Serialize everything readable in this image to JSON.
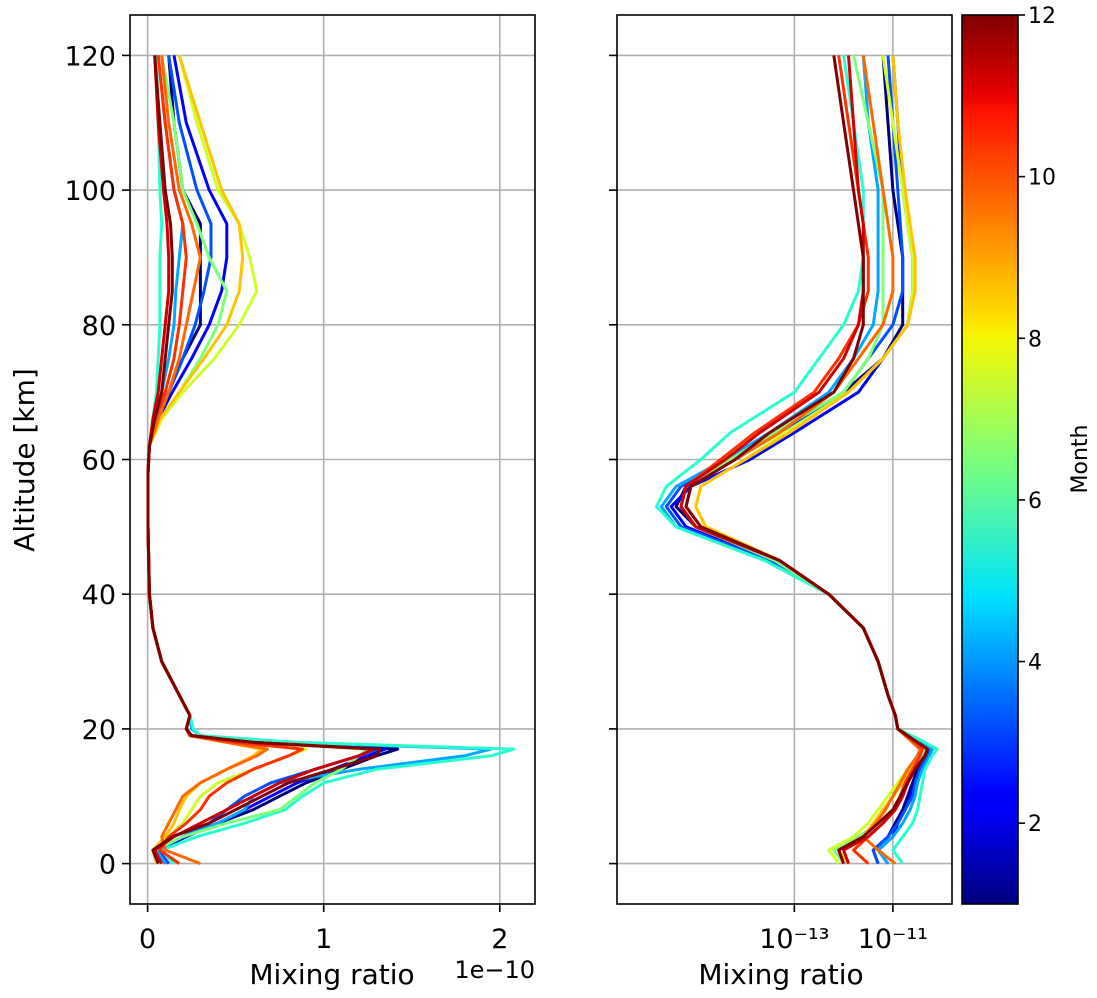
{
  "chart_data": [
    {
      "type": "line",
      "panel": "left",
      "title": "",
      "xlabel": "Mixing ratio",
      "ylabel": "Altitude [km]",
      "x_offset_text": "1e−10",
      "x_scale": "linear",
      "xlim": [
        -1e-11,
        2.2e-10
      ],
      "ylim": [
        -6,
        126
      ],
      "xticks": [
        0,
        1e-10,
        2e-10
      ],
      "xtick_labels": [
        "0",
        "1",
        "2"
      ],
      "yticks": [
        0,
        20,
        40,
        60,
        80,
        100,
        120
      ],
      "ytick_labels": [
        "0",
        "20",
        "40",
        "60",
        "80",
        "100",
        "120"
      ],
      "grid": true,
      "altitudes": [
        0,
        2,
        4,
        6,
        8,
        10,
        12,
        14,
        16,
        17,
        18,
        19,
        20,
        22,
        25,
        30,
        35,
        40,
        50,
        58,
        62,
        66,
        70,
        75,
        80,
        85,
        90,
        95,
        100,
        110,
        120
      ],
      "series": [
        {
          "month": 1,
          "color": "#00007f",
          "x": [
            1e-11,
            5e-12,
            2e-11,
            4e-11,
            6e-11,
            7.5e-11,
            9e-11,
            1.1e-10,
            1.3e-10,
            1.42e-10,
            7e-11,
            2.5e-11,
            2.2e-11,
            2.4e-11,
            1.8e-11,
            8e-12,
            3e-12,
            1e-12,
            2e-13,
            2e-13,
            1e-12,
            5e-12,
            1.2e-11,
            2e-11,
            3e-11,
            3e-11,
            3e-11,
            3e-11,
            2e-11,
            1.5e-11,
            1.2e-11
          ]
        },
        {
          "month": 2,
          "color": "#0000ff",
          "x": [
            1.2e-11,
            6e-12,
            2.2e-11,
            4e-11,
            5.5e-11,
            7e-11,
            8.5e-11,
            1.05e-10,
            1.25e-10,
            1.35e-10,
            7e-11,
            2.5e-11,
            2.2e-11,
            2.4e-11,
            1.8e-11,
            8e-12,
            3e-12,
            1e-12,
            2e-13,
            2e-13,
            1e-12,
            6e-12,
            1.4e-11,
            2.5e-11,
            3.5e-11,
            4.2e-11,
            4.5e-11,
            4.5e-11,
            3.5e-11,
            2.2e-11,
            1.5e-11
          ]
        },
        {
          "month": 3,
          "color": "#0050ff",
          "x": [
            1.2e-11,
            6e-12,
            2e-11,
            3.5e-11,
            4.5e-11,
            5.5e-11,
            7e-11,
            9.5e-11,
            1.2e-10,
            1.3e-10,
            6.5e-11,
            2.4e-11,
            2.2e-11,
            2.4e-11,
            1.8e-11,
            8e-12,
            3e-12,
            1e-12,
            2e-13,
            2e-13,
            1e-12,
            5e-12,
            1.2e-11,
            2e-11,
            2.7e-11,
            3.2e-11,
            3.6e-11,
            3.6e-11,
            2.8e-11,
            1.8e-11,
            1.2e-11
          ]
        },
        {
          "month": 4,
          "color": "#00a8ff",
          "x": [
            1e-11,
            5e-12,
            2e-11,
            4e-11,
            5.5e-11,
            6e-11,
            7.5e-11,
            1.2e-10,
            1.8e-10,
            1.95e-10,
            8e-11,
            3e-11,
            2.5e-11,
            2.4e-11,
            1.8e-11,
            8e-12,
            3e-12,
            1e-12,
            2e-13,
            2e-13,
            1e-12,
            4e-12,
            8e-12,
            1.2e-11,
            1.5e-11,
            1.6e-11,
            1.8e-11,
            2e-11,
            1.5e-11,
            1e-11,
            6e-12
          ]
        },
        {
          "month": 5,
          "color": "#29ffce",
          "x": [
            1.5e-11,
            8e-12,
            2.8e-11,
            5.5e-11,
            7.8e-11,
            8.8e-11,
            1e-10,
            1.3e-10,
            1.95e-10,
            2.08e-10,
            8.5e-11,
            3e-11,
            2.6e-11,
            2.4e-11,
            1.8e-11,
            8e-12,
            3e-12,
            1e-12,
            2e-13,
            2e-13,
            1e-12,
            3e-12,
            5e-12,
            6e-12,
            7e-12,
            7e-12,
            7e-12,
            8e-12,
            7e-12,
            6e-12,
            5e-12
          ]
        },
        {
          "month": 6,
          "color": "#7dff7a",
          "x": [
            8e-12,
            4e-12,
            2e-11,
            4.5e-11,
            7.5e-11,
            8.5e-11,
            9.5e-11,
            1.1e-10,
            1.2e-10,
            1.25e-10,
            6e-11,
            2.5e-11,
            2.2e-11,
            2.4e-11,
            1.8e-11,
            8e-12,
            3e-12,
            1e-12,
            2e-13,
            2e-13,
            1e-12,
            8e-12,
            1.8e-11,
            3e-11,
            4e-11,
            4.5e-11,
            3.5e-11,
            2.8e-11,
            2e-11,
            1.5e-11,
            8e-12
          ]
        },
        {
          "month": 7,
          "color": "#ceff29",
          "x": [
            6e-12,
            3e-12,
            1.2e-11,
            2e-11,
            2.5e-11,
            3e-11,
            4e-11,
            6e-11,
            8e-11,
            9e-11,
            5e-11,
            2.5e-11,
            2.2e-11,
            2.4e-11,
            1.8e-11,
            8e-12,
            3e-12,
            1e-12,
            2e-13,
            2e-13,
            1e-12,
            8e-12,
            2e-11,
            3.8e-11,
            5.2e-11,
            6.2e-11,
            5.8e-11,
            5.2e-11,
            4e-11,
            2.8e-11,
            1.8e-11
          ]
        },
        {
          "month": 8,
          "color": "#ffc400",
          "x": [
            5e-12,
            3e-12,
            1e-11,
            1.5e-11,
            1.8e-11,
            2.2e-11,
            3e-11,
            4.5e-11,
            6e-11,
            6.5e-11,
            4.5e-11,
            2.4e-11,
            2.2e-11,
            2.4e-11,
            1.8e-11,
            8e-12,
            3e-12,
            1e-12,
            2e-13,
            2e-13,
            1e-12,
            7e-12,
            1.8e-11,
            3.2e-11,
            4.5e-11,
            5.2e-11,
            5.4e-11,
            5.2e-11,
            4.2e-11,
            3e-11,
            1.8e-11
          ]
        },
        {
          "month": 9,
          "color": "#ff6800",
          "x": [
            3e-11,
            1e-11,
            8e-12,
            1.2e-11,
            1.6e-11,
            2e-11,
            3e-11,
            4.5e-11,
            6.2e-11,
            6.8e-11,
            4.5e-11,
            2.4e-11,
            2.2e-11,
            2.4e-11,
            1.8e-11,
            8e-12,
            3e-12,
            1e-12,
            2e-13,
            2e-13,
            1e-12,
            6e-12,
            1.2e-11,
            1.8e-11,
            2.2e-11,
            2.6e-11,
            3e-11,
            2.5e-11,
            1.8e-11,
            1.2e-11,
            8e-12
          ]
        },
        {
          "month": 10,
          "color": "#ff3000",
          "x": [
            1.8e-11,
            7e-12,
            1.2e-11,
            2.2e-11,
            3e-11,
            3.5e-11,
            4.5e-11,
            6e-11,
            8e-11,
            8.8e-11,
            5e-11,
            2.4e-11,
            2.2e-11,
            2.4e-11,
            1.8e-11,
            8e-12,
            3e-12,
            1e-12,
            2e-13,
            2e-13,
            1e-12,
            4e-12,
            1e-11,
            1.5e-11,
            1.8e-11,
            2e-11,
            2.2e-11,
            2e-11,
            1.5e-11,
            1e-11,
            6e-12
          ]
        },
        {
          "month": 11,
          "color": "#d10000",
          "x": [
            8e-12,
            4e-12,
            1.5e-11,
            3e-11,
            4.5e-11,
            6e-11,
            7.5e-11,
            9.5e-11,
            1.2e-10,
            1.28e-10,
            6e-11,
            2.5e-11,
            2.2e-11,
            2.4e-11,
            1.8e-11,
            8e-12,
            3e-12,
            1e-12,
            2e-13,
            2e-13,
            1e-12,
            3e-12,
            6e-12,
            8e-12,
            1e-11,
            1.2e-11,
            1.2e-11,
            1.1e-11,
            9e-12,
            6e-12,
            4e-12
          ]
        },
        {
          "month": 12,
          "color": "#7f0000",
          "x": [
            6e-12,
            3e-12,
            1.4e-11,
            3.5e-11,
            5e-11,
            6.5e-11,
            8e-11,
            1.05e-10,
            1.3e-10,
            1.32e-10,
            6e-11,
            2.5e-11,
            2.2e-11,
            2.4e-11,
            1.8e-11,
            8e-12,
            3e-12,
            1e-12,
            2e-13,
            2e-13,
            1e-12,
            4e-12,
            8e-12,
            1e-11,
            1.2e-11,
            1.4e-11,
            1.4e-11,
            1.3e-11,
            1e-11,
            7e-12,
            4e-12
          ]
        }
      ]
    },
    {
      "type": "line",
      "panel": "right",
      "title": "",
      "xlabel": "Mixing ratio",
      "ylabel": "",
      "x_scale": "log",
      "xlim_log10": [
        -16.6,
        -9.8
      ],
      "ylim": [
        -6,
        126
      ],
      "xticks_log10": [
        -13,
        -11
      ],
      "xtick_labels": [
        "10⁻¹³",
        "10⁻¹¹"
      ],
      "yticks": [
        0,
        20,
        40,
        60,
        80,
        100,
        120
      ],
      "grid": true,
      "altitudes": [
        0,
        2,
        4,
        6,
        8,
        10,
        12,
        14,
        16,
        17,
        18,
        20,
        22,
        25,
        30,
        35,
        40,
        45,
        50,
        53,
        56,
        60,
        64,
        70,
        75,
        80,
        85,
        90,
        95,
        100,
        110,
        120
      ],
      "series": [
        {
          "month": 1,
          "color": "#00007f",
          "log10_x": [
            -11.3,
            -11.4,
            -11.1,
            -10.95,
            -10.8,
            -10.7,
            -10.6,
            -10.5,
            -10.3,
            -10.2,
            -10.4,
            -10.9,
            -10.95,
            -11.1,
            -11.3,
            -11.6,
            -12.3,
            -13.4,
            -15.0,
            -15.4,
            -15.2,
            -14.2,
            -13.3,
            -12.0,
            -11.2,
            -10.8,
            -10.8,
            -10.8,
            -10.9,
            -11.0,
            -11.1,
            -11.2
          ]
        },
        {
          "month": 2,
          "color": "#0000ff",
          "log10_x": [
            -11.1,
            -11.3,
            -11.0,
            -10.9,
            -10.75,
            -10.65,
            -10.55,
            -10.45,
            -10.3,
            -10.25,
            -10.45,
            -10.9,
            -10.95,
            -11.1,
            -11.3,
            -11.6,
            -12.3,
            -13.5,
            -15.2,
            -15.5,
            -15.1,
            -13.9,
            -13.0,
            -11.7,
            -11.2,
            -10.7,
            -10.6,
            -10.6,
            -10.7,
            -10.8,
            -10.9,
            -11.0
          ]
        },
        {
          "month": 3,
          "color": "#0050ff",
          "log10_x": [
            -11.3,
            -11.4,
            -11.1,
            -10.9,
            -10.75,
            -10.6,
            -10.55,
            -10.45,
            -10.3,
            -10.25,
            -10.45,
            -10.9,
            -10.95,
            -11.1,
            -11.3,
            -11.6,
            -12.3,
            -13.5,
            -15.3,
            -15.6,
            -15.3,
            -14.2,
            -13.3,
            -12.0,
            -11.5,
            -11.0,
            -10.8,
            -10.8,
            -10.85,
            -10.9,
            -11.0,
            -11.1
          ]
        },
        {
          "month": 4,
          "color": "#00a8ff",
          "log10_x": [
            -11.1,
            -11.3,
            -11.0,
            -10.8,
            -10.65,
            -10.55,
            -10.5,
            -10.4,
            -10.25,
            -10.2,
            -10.4,
            -10.9,
            -10.95,
            -11.1,
            -11.3,
            -11.6,
            -12.3,
            -13.6,
            -15.4,
            -15.7,
            -15.4,
            -14.4,
            -13.5,
            -12.3,
            -11.8,
            -11.4,
            -11.3,
            -11.3,
            -11.3,
            -11.3,
            -11.5,
            -11.6
          ]
        },
        {
          "month": 5,
          "color": "#29ffce",
          "log10_x": [
            -10.8,
            -11.0,
            -10.8,
            -10.6,
            -10.5,
            -10.45,
            -10.4,
            -10.35,
            -10.2,
            -10.1,
            -10.35,
            -10.9,
            -10.95,
            -11.1,
            -11.3,
            -11.6,
            -12.3,
            -13.6,
            -15.4,
            -15.8,
            -15.6,
            -14.9,
            -14.3,
            -13.0,
            -12.5,
            -12.0,
            -11.7,
            -11.6,
            -11.6,
            -11.6,
            -11.8,
            -12.0
          ]
        },
        {
          "month": 6,
          "color": "#7dff7a",
          "log10_x": [
            -12.0,
            -12.2,
            -11.7,
            -11.3,
            -11.0,
            -10.8,
            -10.7,
            -10.6,
            -10.4,
            -10.35,
            -10.5,
            -10.9,
            -10.95,
            -11.1,
            -11.3,
            -11.6,
            -12.3,
            -13.4,
            -15.0,
            -15.3,
            -15.2,
            -14.3,
            -13.4,
            -12.0,
            -11.5,
            -11.2,
            -11.2,
            -11.2,
            -11.2,
            -11.2,
            -11.5,
            -11.8
          ]
        },
        {
          "month": 7,
          "color": "#ceff29",
          "log10_x": [
            -12.1,
            -12.3,
            -11.8,
            -11.5,
            -11.3,
            -11.1,
            -10.9,
            -10.7,
            -10.5,
            -10.45,
            -10.6,
            -10.9,
            -10.95,
            -11.1,
            -11.3,
            -11.6,
            -12.3,
            -13.3,
            -14.8,
            -15.0,
            -14.9,
            -14.0,
            -13.2,
            -11.9,
            -11.2,
            -10.7,
            -10.6,
            -10.6,
            -10.7,
            -10.8,
            -11.0,
            -11.2
          ]
        },
        {
          "month": 8,
          "color": "#ffc400",
          "log10_x": [
            -11.9,
            -12.1,
            -11.6,
            -11.4,
            -11.2,
            -11.0,
            -10.8,
            -10.65,
            -10.5,
            -10.45,
            -10.6,
            -10.9,
            -10.95,
            -11.1,
            -11.3,
            -11.6,
            -12.3,
            -13.3,
            -14.8,
            -15.0,
            -14.9,
            -14.0,
            -13.1,
            -11.9,
            -11.2,
            -10.7,
            -10.55,
            -10.55,
            -10.65,
            -10.75,
            -10.9,
            -11.0
          ]
        },
        {
          "month": 9,
          "color": "#ff6800",
          "log10_x": [
            -10.95,
            -11.3,
            -11.6,
            -11.35,
            -11.15,
            -11.0,
            -10.85,
            -10.7,
            -10.5,
            -10.45,
            -10.6,
            -10.9,
            -10.95,
            -11.1,
            -11.3,
            -11.6,
            -12.3,
            -13.3,
            -14.9,
            -15.2,
            -15.1,
            -14.2,
            -13.3,
            -12.2,
            -11.7,
            -11.2,
            -11.0,
            -11.0,
            -11.1,
            -11.2,
            -11.4,
            -11.6
          ]
        },
        {
          "month": 10,
          "color": "#ff3000",
          "log10_x": [
            -11.5,
            -11.8,
            -11.5,
            -11.2,
            -11.0,
            -10.85,
            -10.75,
            -10.6,
            -10.45,
            -10.4,
            -10.55,
            -10.9,
            -10.95,
            -11.1,
            -11.3,
            -11.6,
            -12.3,
            -13.3,
            -15.0,
            -15.3,
            -15.2,
            -14.5,
            -13.8,
            -12.6,
            -12.1,
            -11.7,
            -11.5,
            -11.5,
            -11.6,
            -11.7,
            -11.9,
            -12.1
          ]
        },
        {
          "month": 11,
          "color": "#d10000",
          "log10_x": [
            -11.9,
            -12.0,
            -11.5,
            -11.2,
            -10.95,
            -10.8,
            -10.7,
            -10.55,
            -10.35,
            -10.3,
            -10.5,
            -10.9,
            -10.95,
            -11.1,
            -11.3,
            -11.6,
            -12.3,
            -13.3,
            -15.0,
            -15.3,
            -15.2,
            -14.4,
            -13.7,
            -12.5,
            -12.0,
            -11.7,
            -11.6,
            -11.6,
            -11.6,
            -11.7,
            -11.8,
            -11.9
          ]
        },
        {
          "month": 12,
          "color": "#7f0000",
          "log10_x": [
            -12.0,
            -12.1,
            -11.6,
            -11.3,
            -11.0,
            -10.85,
            -10.7,
            -10.55,
            -10.35,
            -10.3,
            -10.5,
            -10.9,
            -10.95,
            -11.1,
            -11.3,
            -11.6,
            -12.3,
            -13.3,
            -14.9,
            -15.2,
            -15.1,
            -14.2,
            -13.5,
            -12.2,
            -11.8,
            -11.6,
            -11.6,
            -11.6,
            -11.7,
            -11.8,
            -12.0,
            -12.2
          ]
        }
      ]
    }
  ],
  "colorbar": {
    "label": "Month",
    "range": [
      1,
      12
    ],
    "ticks": [
      2,
      4,
      6,
      8,
      10,
      12
    ],
    "tick_labels": [
      "2",
      "4",
      "6",
      "8",
      "10",
      "12"
    ],
    "colormap": "jet"
  }
}
